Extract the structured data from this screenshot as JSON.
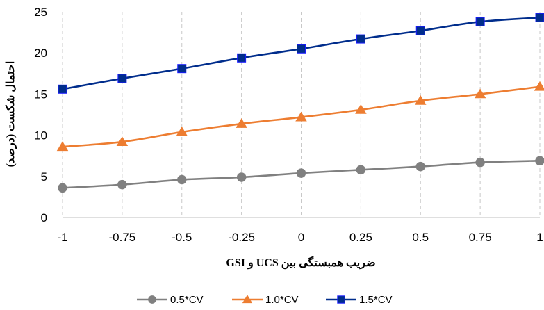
{
  "chart_data": {
    "type": "line",
    "title": "",
    "xlabel": "ضریب همبستگی بین UCS و GSI",
    "ylabel": "احتمال شکست (درصد)",
    "x": [
      -1,
      -0.75,
      -0.5,
      -0.25,
      0,
      0.25,
      0.5,
      0.75,
      1
    ],
    "x_tick_labels": [
      "-1",
      "-0.75",
      "-0.5",
      "-0.25",
      "0",
      "0.25",
      "0.5",
      "0.75",
      "1"
    ],
    "y_ticks": [
      0,
      5,
      10,
      15,
      20,
      25
    ],
    "xlim": [
      -1,
      1
    ],
    "ylim": [
      0,
      25
    ],
    "grid": "vertical-dashed",
    "legend_position": "bottom",
    "series": [
      {
        "name": "0.5*CV",
        "color": "#808080",
        "marker": "circle",
        "values": [
          3.6,
          4.0,
          4.6,
          4.9,
          5.4,
          5.8,
          6.2,
          6.7,
          6.9
        ]
      },
      {
        "name": "1.0*CV",
        "color": "#ED7D31",
        "marker": "triangle",
        "values": [
          8.6,
          9.2,
          10.4,
          11.4,
          12.2,
          13.1,
          14.2,
          15.0,
          15.9
        ]
      },
      {
        "name": "1.5*CV",
        "color": "#002D8C",
        "marker": "square",
        "values": [
          15.6,
          16.9,
          18.1,
          19.4,
          20.5,
          21.7,
          22.7,
          23.8,
          24.3
        ]
      }
    ]
  }
}
